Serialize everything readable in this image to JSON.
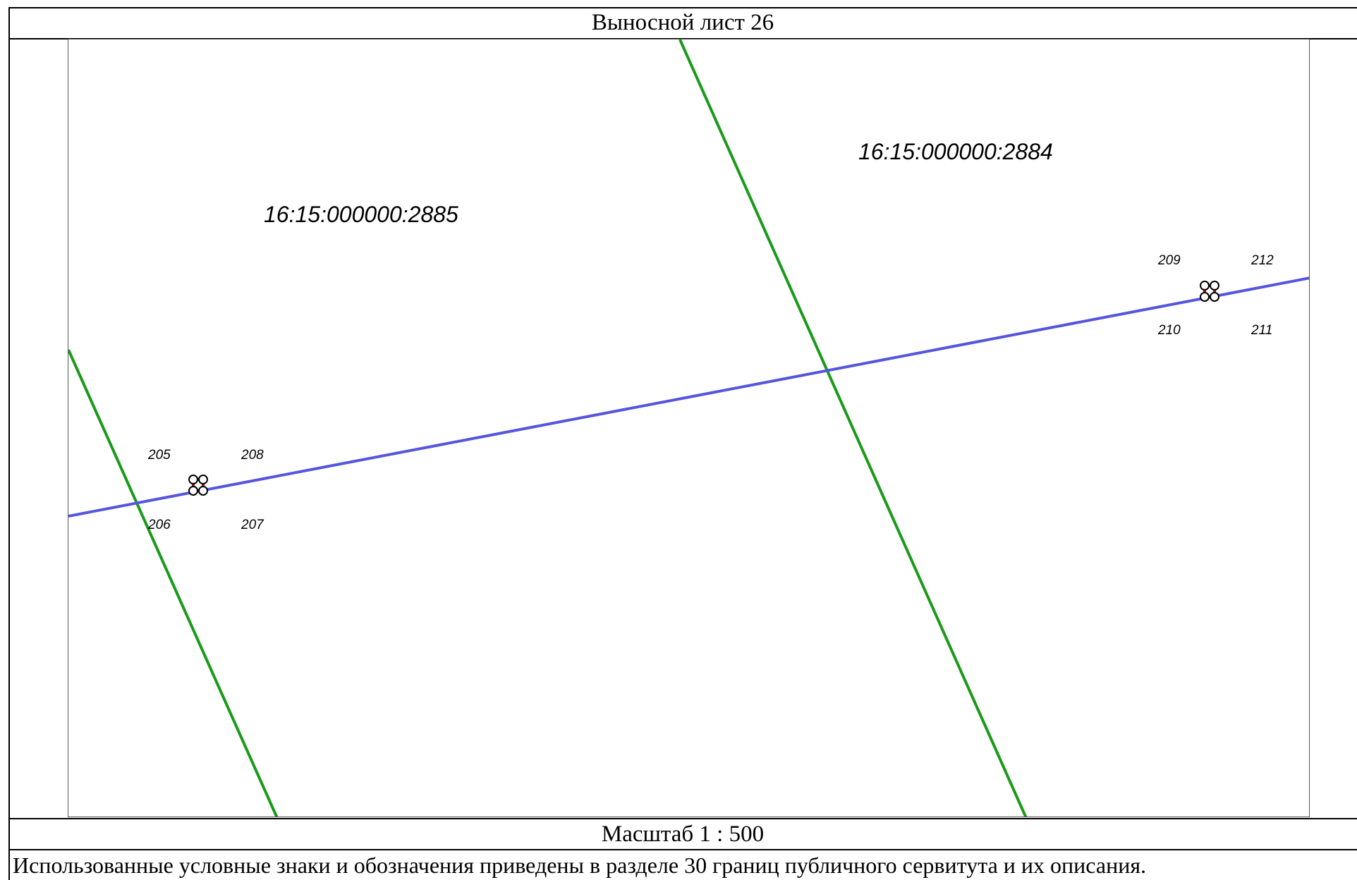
{
  "sheet_title": "Выносной лист 26",
  "scale_text": "Масштаб 1 : 500",
  "note_text": "Использованные условные знаки и обозначения приведены в разделе 30 границ публичного сервитута и их описания.",
  "colors": {
    "parcel_boundary": "#1a9a1a",
    "servitude_line": "#5555dd",
    "servitude_polygon": "#b01010",
    "point_marker_fill": "#ffffff",
    "point_marker_stroke": "#000000"
  },
  "parcels": [
    {
      "label": "16:15:000000:2885"
    },
    {
      "label": "16:15:000000:2884"
    }
  ],
  "point_groups": [
    {
      "points": [
        {
          "label": "205"
        },
        {
          "label": "208"
        },
        {
          "label": "206"
        },
        {
          "label": "207"
        }
      ]
    },
    {
      "points": [
        {
          "label": "209"
        },
        {
          "label": "212"
        },
        {
          "label": "210"
        },
        {
          "label": "211"
        }
      ]
    }
  ]
}
